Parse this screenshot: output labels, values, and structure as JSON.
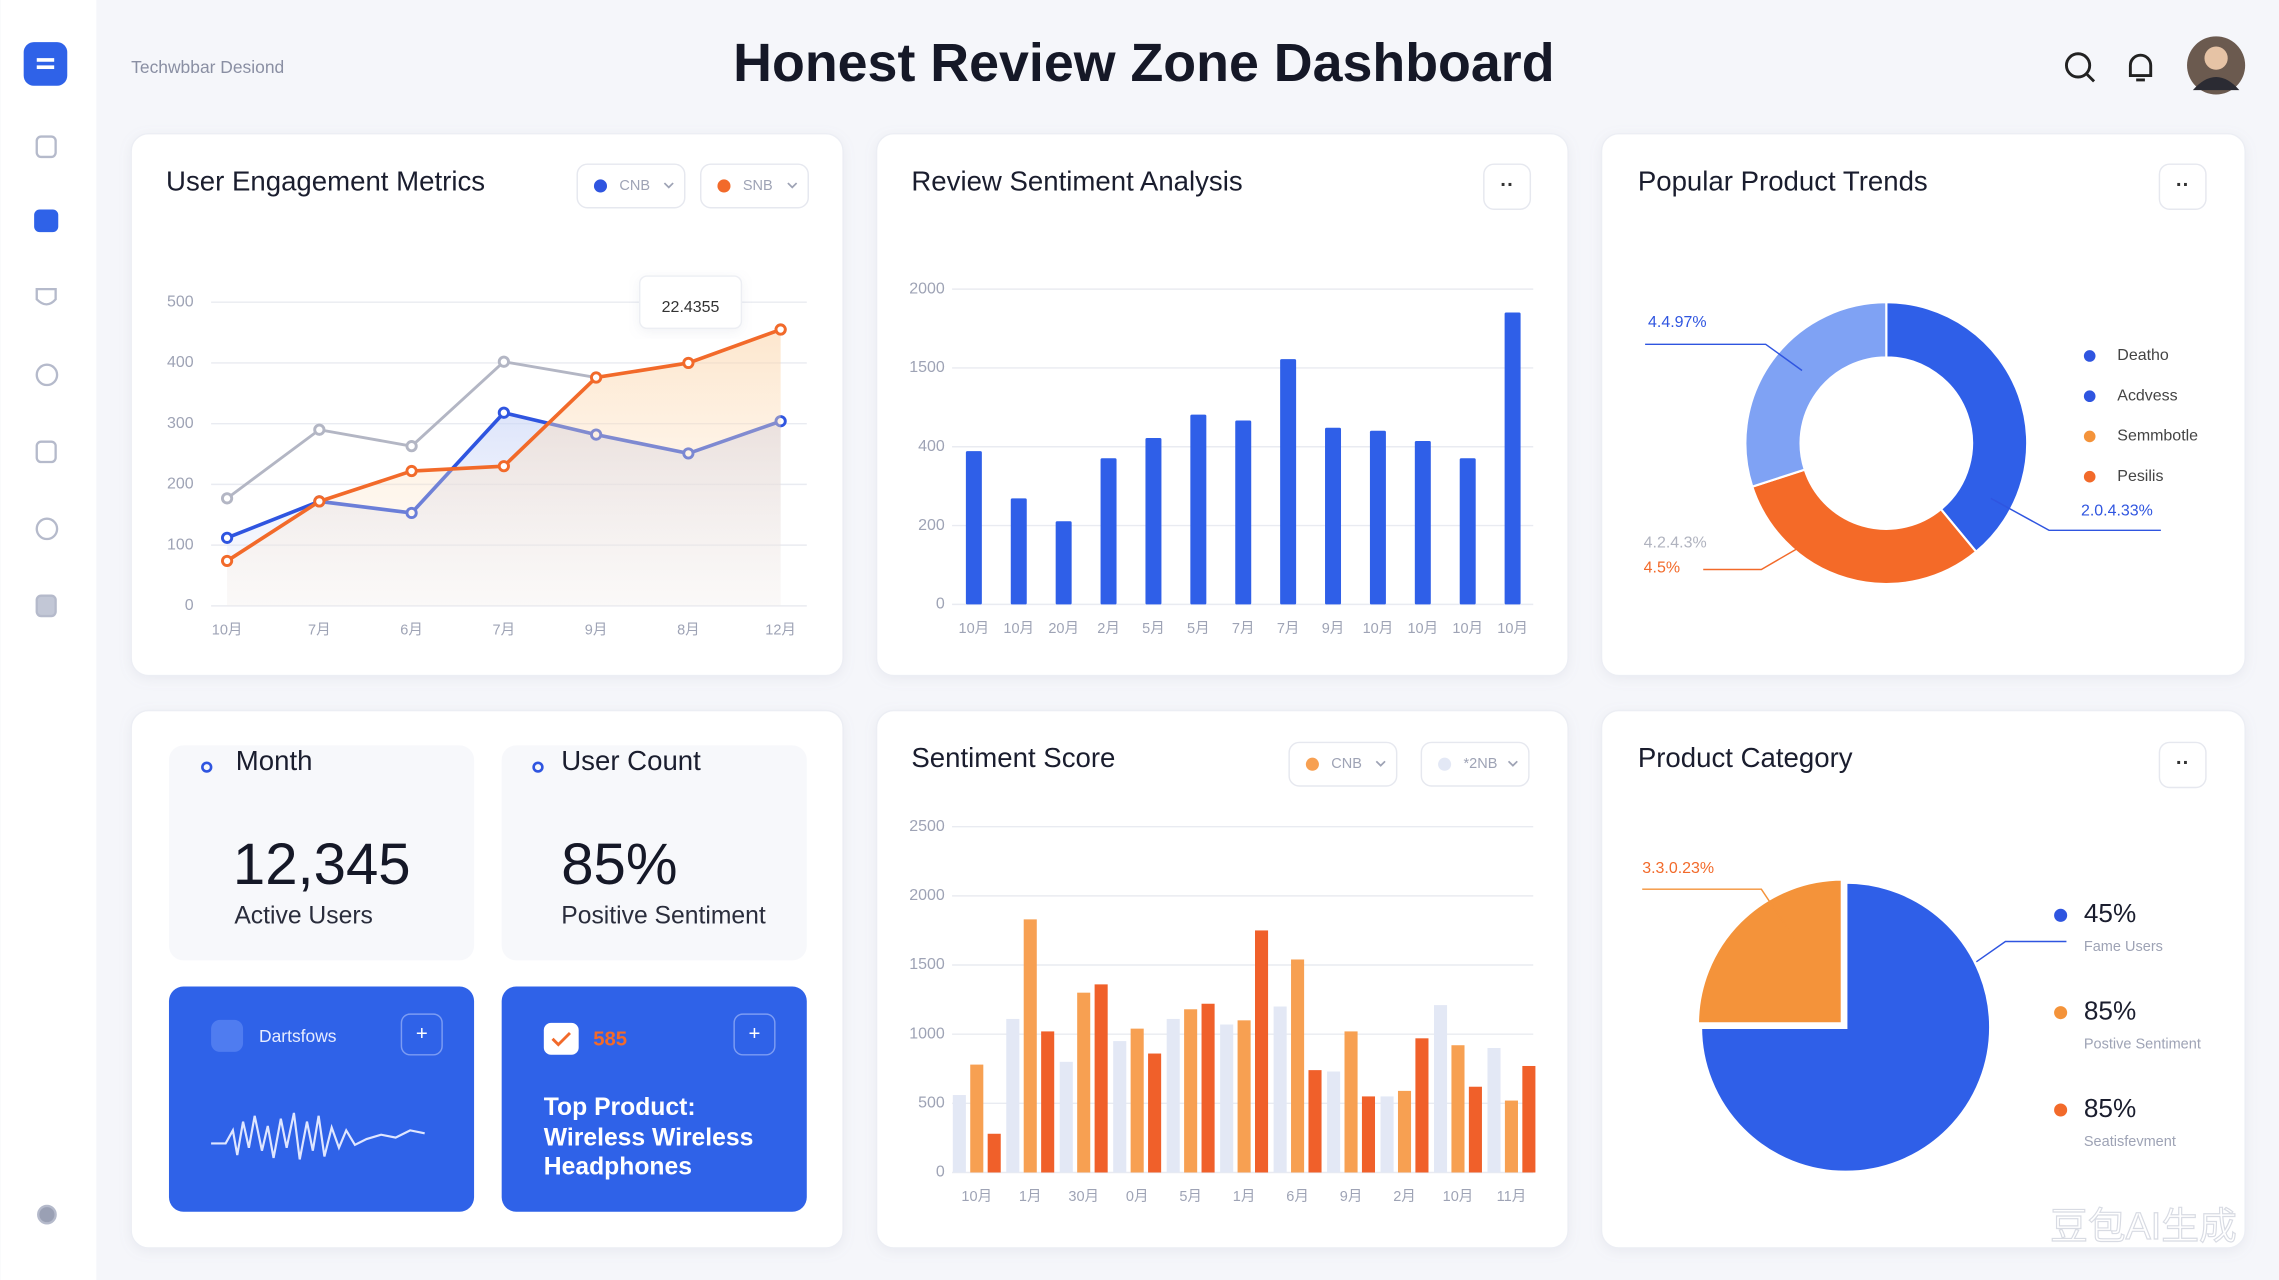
{
  "header": {
    "brand": "Techwbbar Desiond",
    "title": "Honest Review Zone Dashboard"
  },
  "chart_data": [
    {
      "type": "line",
      "title": "User Engagement Metrics",
      "tooltip": "22.4355",
      "categories": [
        "10月",
        "7月",
        "6月",
        "7月",
        "9月",
        "8月",
        "12月"
      ],
      "series": [
        {
          "color": "#b3b6c4",
          "values": [
            177,
            290,
            263,
            402,
            376,
            400,
            455
          ]
        },
        {
          "name": "CNB",
          "color": "#2f55e0",
          "values": [
            112,
            172,
            153,
            318,
            282,
            251,
            304
          ]
        },
        {
          "name": "SNB",
          "color": "#f26a2a",
          "values": [
            74,
            172,
            222,
            230,
            376,
            400,
            455
          ]
        }
      ],
      "ylim": [
        0,
        500
      ],
      "yticks": [
        0,
        100,
        200,
        300,
        400,
        500
      ],
      "grid": true
    },
    {
      "type": "bar",
      "title": "Review Sentiment Analysis",
      "categories": [
        "10月",
        "10月",
        "20月",
        "2月",
        "5月",
        "5月",
        "7月",
        "7月",
        "9月",
        "10月",
        "10月",
        "10月",
        "10月"
      ],
      "values": [
        389,
        269,
        211,
        371,
        522,
        848,
        767,
        1556,
        665,
        624,
        481,
        371,
        1852
      ],
      "color": "#2f5fe8",
      "ylim": [
        0,
        2000
      ],
      "yticks": [
        0,
        200,
        400,
        1500,
        2000
      ],
      "tick_spaced": true,
      "grid": true
    },
    {
      "type": "donut",
      "title": "Popular Product Trends",
      "values": [
        39,
        31,
        30
      ],
      "colors": [
        "#2f5fe8",
        "#f46a28",
        "#7fa2f4"
      ],
      "annotations": [
        "4.4.97%",
        "4.2.4.3%",
        "4.5%",
        "2.0.4.33%"
      ],
      "legend": [
        {
          "label": "Deatho",
          "color": "#2f55e0"
        },
        {
          "label": "Acdvess",
          "color": "#2f55e0"
        },
        {
          "label": "Semmbotle",
          "color": "#f4933a"
        },
        {
          "label": "Pesilis",
          "color": "#f26a2a"
        }
      ]
    },
    {
      "type": "grouped-bar",
      "title": "Sentiment Score",
      "categories": [
        "10月",
        "1月",
        "30月",
        "0月",
        "5月",
        "1月",
        "6月",
        "9月",
        "2月",
        "10月",
        "11月"
      ],
      "series": [
        {
          "name": "CNB",
          "color": "#f7a052",
          "values": [
            780,
            1830,
            1300,
            1040,
            1180,
            1100,
            1540,
            1020,
            590,
            920,
            520
          ]
        },
        {
          "name": "*2NB",
          "color": "#e3e8f5",
          "values": [
            560,
            1110,
            800,
            950,
            1110,
            1070,
            1200,
            730,
            550,
            1210,
            900
          ]
        },
        {
          "color": "#f0602a",
          "values": [
            280,
            1020,
            1360,
            860,
            1220,
            1750,
            740,
            550,
            970,
            620,
            770
          ]
        }
      ],
      "ylim": [
        0,
        2500
      ],
      "yticks": [
        0,
        500,
        1000,
        1500,
        2000,
        2500
      ],
      "grid": true
    },
    {
      "type": "pie",
      "title": "Product Category",
      "values": [
        75,
        25
      ],
      "colors": [
        "#2f5fe8",
        "#f4933a"
      ],
      "annotation": "3.3.0.23%",
      "legend": [
        {
          "label": "45%",
          "sublabel": "Fame Users",
          "color": "#2f55e0"
        },
        {
          "label": "85%",
          "sublabel": "Postive Sentiment",
          "color": "#f4933a"
        },
        {
          "label": "85%",
          "sublabel": "Seatisfevment",
          "color": "#f26a2a"
        }
      ]
    }
  ],
  "stats": [
    {
      "title": "Month",
      "value": "12,345",
      "caption": "Active Users"
    },
    {
      "title": "User Count",
      "value": "85%",
      "caption": "Positive Sentiment"
    }
  ],
  "promos": [
    {
      "label": "Dartsfows"
    },
    {
      "badge": "585",
      "lines": [
        "Top Product:",
        "Wireless Wireless",
        "Headphones"
      ]
    }
  ],
  "watermark": "豆包AI生成"
}
